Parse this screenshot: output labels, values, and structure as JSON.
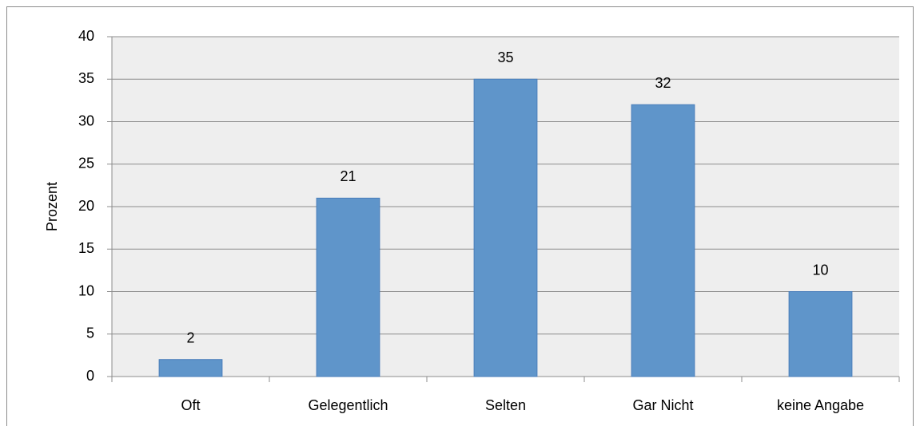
{
  "chart_data": {
    "type": "bar",
    "y_label": "Prozent",
    "categories": [
      "Oft",
      "Gelegentlich",
      "Selten",
      "Gar Nicht",
      "keine Angabe"
    ],
    "values": [
      2,
      21,
      35,
      32,
      10
    ],
    "color": "#5f95ca",
    "ylim": [
      0,
      40
    ],
    "yticks": [
      0,
      5,
      10,
      15,
      20,
      25,
      30,
      35,
      40
    ],
    "grid": true
  }
}
